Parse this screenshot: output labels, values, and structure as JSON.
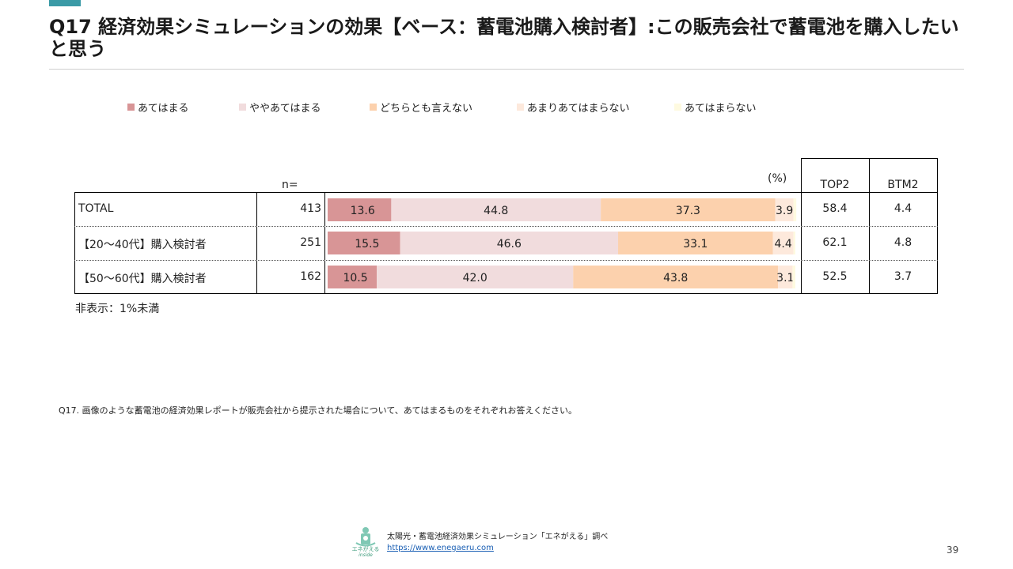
{
  "title": "Q17 経済効果シミュレーションの効果【ベース：蓄電池購入検討者】:この販売会社で蓄電池を購入したいと思う",
  "legend": [
    {
      "label": "あてはまる",
      "color": "#d89596"
    },
    {
      "label": "ややあてはまる",
      "color": "#f1dcdd"
    },
    {
      "label": "どちらとも言えない",
      "color": "#fcd1ad"
    },
    {
      "label": "あまりあてはまらない",
      "color": "#fde9dc"
    },
    {
      "label": "あてはまらない",
      "color": "#fefae0"
    }
  ],
  "table": {
    "n_header": "n=",
    "percent_header": "(%)",
    "top2_header": "TOP2",
    "btm2_header": "BTM2"
  },
  "chart_data": {
    "type": "bar",
    "orientation": "horizontal",
    "stacked": true,
    "xlim": [
      0,
      100
    ],
    "categories": [
      "TOTAL",
      "【20～40代】購入検討者",
      "【50～60代】購入検討者"
    ],
    "n": [
      "413",
      "251",
      "162"
    ],
    "series": [
      {
        "name": "あてはまる",
        "values": [
          13.6,
          15.5,
          10.5
        ]
      },
      {
        "name": "ややあてはまる",
        "values": [
          44.8,
          46.6,
          42.0
        ]
      },
      {
        "name": "どちらとも言えない",
        "values": [
          37.3,
          33.1,
          43.8
        ]
      },
      {
        "name": "あまりあてはまらない",
        "values": [
          3.9,
          4.4,
          3.1
        ]
      },
      {
        "name": "あてはまらない",
        "values": [
          0.6,
          0.4,
          0.6
        ]
      }
    ],
    "top2": [
      "58.4",
      "62.1",
      "52.5"
    ],
    "btm2": [
      "4.4",
      "4.8",
      "3.7"
    ],
    "label_threshold": 1
  },
  "note": "非表示：1%未満",
  "question": "Q17. 画像のような蓄電池の経済効果レポートが販売会社から提示された場合について、あてはまるものをそれぞれお答えください。",
  "footer": {
    "logo_name": "エネがえる",
    "logo_sub": "inside",
    "source": "太陽光・蓄電池経済効果シミュレーション「エネがえる」調べ",
    "url": " https://www.enegaeru.com"
  },
  "page_number": "39"
}
